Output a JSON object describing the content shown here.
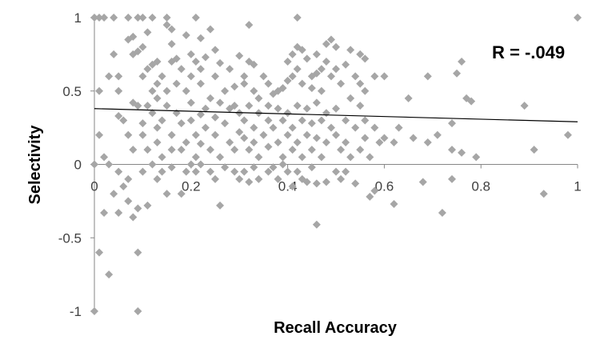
{
  "chart_data": {
    "type": "scatter",
    "title": "",
    "xlabel": "Recall Accuracy",
    "ylabel": "Selectivity",
    "xlim": [
      0,
      1
    ],
    "ylim": [
      -1,
      1
    ],
    "x_ticks": [
      0,
      0.2,
      0.4,
      0.6,
      0.8,
      1
    ],
    "x_tick_labels": [
      "0",
      "0.2",
      "0.4",
      "0.6",
      "0.8",
      "1"
    ],
    "y_ticks": [
      -1,
      -0.5,
      0,
      0.5,
      1
    ],
    "y_tick_labels": [
      "-1",
      "-0.5",
      "0",
      "0.5",
      "1"
    ],
    "grid": false,
    "legend": "none",
    "annotation": "R = -.049",
    "marker": "diamond",
    "marker_color": "#a6a6a6",
    "trendline": {
      "color": "#000000",
      "points": [
        [
          0,
          0.38
        ],
        [
          1,
          0.29
        ]
      ]
    },
    "series": [
      {
        "points": [
          [
            0.0,
            1.0
          ],
          [
            0.01,
            1.0
          ],
          [
            0.02,
            1.0
          ],
          [
            0.04,
            1.0
          ],
          [
            0.07,
            1.0
          ],
          [
            0.09,
            1.0
          ],
          [
            0.1,
            1.0
          ],
          [
            0.12,
            1.0
          ],
          [
            0.15,
            1.0
          ],
          [
            0.21,
            1.0
          ],
          [
            0.42,
            1.0
          ],
          [
            1.0,
            1.0
          ],
          [
            0.01,
            0.5
          ],
          [
            0.03,
            0.6
          ],
          [
            0.05,
            0.6
          ],
          [
            0.04,
            0.75
          ],
          [
            0.05,
            0.5
          ],
          [
            0.07,
            0.85
          ],
          [
            0.08,
            0.87
          ],
          [
            0.08,
            0.75
          ],
          [
            0.09,
            0.77
          ],
          [
            0.11,
            0.9
          ],
          [
            0.1,
            0.8
          ],
          [
            0.1,
            0.6
          ],
          [
            0.11,
            0.65
          ],
          [
            0.12,
            0.68
          ],
          [
            0.13,
            0.7
          ],
          [
            0.13,
            0.55
          ],
          [
            0.12,
            0.5
          ],
          [
            0.11,
            0.4
          ],
          [
            0.13,
            0.45
          ],
          [
            0.14,
            0.6
          ],
          [
            0.15,
            0.5
          ],
          [
            0.16,
            0.7
          ],
          [
            0.15,
            0.95
          ],
          [
            0.16,
            0.92
          ],
          [
            0.16,
            0.82
          ],
          [
            0.17,
            0.72
          ],
          [
            0.17,
            0.55
          ],
          [
            0.18,
            0.65
          ],
          [
            0.19,
            0.5
          ],
          [
            0.19,
            0.88
          ],
          [
            0.2,
            0.75
          ],
          [
            0.2,
            0.6
          ],
          [
            0.21,
            0.7
          ],
          [
            0.22,
            0.65
          ],
          [
            0.22,
            0.55
          ],
          [
            0.22,
            0.86
          ],
          [
            0.23,
            0.73
          ],
          [
            0.24,
            0.92
          ],
          [
            0.25,
            0.78
          ],
          [
            0.25,
            0.6
          ],
          [
            0.26,
            0.69
          ],
          [
            0.27,
            0.5
          ],
          [
            0.28,
            0.65
          ],
          [
            0.29,
            0.53
          ],
          [
            0.29,
            0.4
          ],
          [
            0.3,
            0.74
          ],
          [
            0.31,
            0.6
          ],
          [
            0.31,
            0.55
          ],
          [
            0.32,
            0.7
          ],
          [
            0.32,
            0.95
          ],
          [
            0.33,
            0.68
          ],
          [
            0.33,
            0.5
          ],
          [
            0.34,
            0.45
          ],
          [
            0.35,
            0.6
          ],
          [
            0.36,
            0.55
          ],
          [
            0.36,
            0.4
          ],
          [
            0.37,
            0.48
          ],
          [
            0.38,
            0.5
          ],
          [
            0.39,
            0.52
          ],
          [
            0.4,
            0.57
          ],
          [
            0.4,
            0.7
          ],
          [
            0.41,
            0.75
          ],
          [
            0.41,
            0.6
          ],
          [
            0.42,
            0.8
          ],
          [
            0.42,
            0.65
          ],
          [
            0.43,
            0.78
          ],
          [
            0.43,
            0.55
          ],
          [
            0.44,
            0.72
          ],
          [
            0.45,
            0.6
          ],
          [
            0.45,
            0.52
          ],
          [
            0.46,
            0.62
          ],
          [
            0.46,
            0.75
          ],
          [
            0.47,
            0.65
          ],
          [
            0.47,
            0.5
          ],
          [
            0.48,
            0.82
          ],
          [
            0.48,
            0.7
          ],
          [
            0.49,
            0.85
          ],
          [
            0.49,
            0.6
          ],
          [
            0.5,
            0.8
          ],
          [
            0.5,
            0.65
          ],
          [
            0.51,
            0.55
          ],
          [
            0.52,
            0.68
          ],
          [
            0.53,
            0.45
          ],
          [
            0.53,
            0.78
          ],
          [
            0.54,
            0.6
          ],
          [
            0.55,
            0.55
          ],
          [
            0.55,
            0.75
          ],
          [
            0.56,
            0.72
          ],
          [
            0.56,
            0.5
          ],
          [
            0.58,
            0.6
          ],
          [
            0.6,
            0.6
          ],
          [
            0.02,
            0.05
          ],
          [
            0.03,
            0.0
          ],
          [
            0.05,
            0.33
          ],
          [
            0.06,
            0.3
          ],
          [
            0.07,
            0.2
          ],
          [
            0.08,
            0.1
          ],
          [
            0.08,
            0.42
          ],
          [
            0.09,
            0.4
          ],
          [
            0.1,
            0.28
          ],
          [
            0.1,
            0.2
          ],
          [
            0.11,
            0.1
          ],
          [
            0.12,
            0.35
          ],
          [
            0.13,
            0.25
          ],
          [
            0.13,
            0.15
          ],
          [
            0.14,
            0.05
          ],
          [
            0.14,
            0.3
          ],
          [
            0.15,
            0.4
          ],
          [
            0.16,
            0.2
          ],
          [
            0.16,
            0.1
          ],
          [
            0.17,
            0.35
          ],
          [
            0.18,
            0.28
          ],
          [
            0.18,
            0.1
          ],
          [
            0.19,
            0.15
          ],
          [
            0.2,
            0.3
          ],
          [
            0.2,
            0.42
          ],
          [
            0.21,
            0.2
          ],
          [
            0.21,
            0.05
          ],
          [
            0.22,
            0.34
          ],
          [
            0.22,
            0.14
          ],
          [
            0.23,
            0.38
          ],
          [
            0.23,
            0.25
          ],
          [
            0.24,
            0.1
          ],
          [
            0.24,
            0.45
          ],
          [
            0.25,
            0.32
          ],
          [
            0.25,
            0.2
          ],
          [
            0.26,
            0.42
          ],
          [
            0.26,
            0.05
          ],
          [
            0.27,
            0.28
          ],
          [
            0.28,
            0.15
          ],
          [
            0.28,
            0.38
          ],
          [
            0.29,
            0.1
          ],
          [
            0.3,
            0.35
          ],
          [
            0.3,
            0.22
          ],
          [
            0.31,
            0.18
          ],
          [
            0.31,
            0.3
          ],
          [
            0.32,
            0.1
          ],
          [
            0.32,
            0.4
          ],
          [
            0.33,
            0.25
          ],
          [
            0.33,
            0.15
          ],
          [
            0.34,
            0.35
          ],
          [
            0.34,
            0.05
          ],
          [
            0.35,
            0.2
          ],
          [
            0.36,
            0.3
          ],
          [
            0.36,
            0.12
          ],
          [
            0.37,
            0.25
          ],
          [
            0.38,
            0.38
          ],
          [
            0.38,
            0.15
          ],
          [
            0.39,
            0.3
          ],
          [
            0.39,
            0.05
          ],
          [
            0.4,
            0.2
          ],
          [
            0.4,
            0.35
          ],
          [
            0.41,
            0.1
          ],
          [
            0.41,
            0.25
          ],
          [
            0.42,
            0.15
          ],
          [
            0.42,
            0.4
          ],
          [
            0.43,
            0.3
          ],
          [
            0.43,
            0.05
          ],
          [
            0.44,
            0.2
          ],
          [
            0.44,
            0.38
          ],
          [
            0.45,
            0.1
          ],
          [
            0.45,
            0.28
          ],
          [
            0.46,
            0.18
          ],
          [
            0.46,
            0.42
          ],
          [
            0.47,
            0.05
          ],
          [
            0.47,
            0.3
          ],
          [
            0.48,
            0.15
          ],
          [
            0.48,
            0.35
          ],
          [
            0.49,
            0.25
          ],
          [
            0.5,
            0.2
          ],
          [
            0.5,
            0.38
          ],
          [
            0.51,
            0.1
          ],
          [
            0.52,
            0.3
          ],
          [
            0.52,
            0.15
          ],
          [
            0.53,
            0.05
          ],
          [
            0.54,
            0.25
          ],
          [
            0.55,
            0.4
          ],
          [
            0.55,
            0.1
          ],
          [
            0.56,
            0.3
          ],
          [
            0.56,
            0.18
          ],
          [
            0.57,
            0.05
          ],
          [
            0.58,
            0.25
          ],
          [
            0.59,
            0.15
          ],
          [
            0.6,
            0.18
          ],
          [
            0.62,
            0.15
          ],
          [
            0.63,
            0.25
          ],
          [
            0.65,
            0.45
          ],
          [
            0.66,
            0.18
          ],
          [
            0.69,
            0.6
          ],
          [
            0.69,
            0.15
          ],
          [
            0.71,
            0.2
          ],
          [
            0.74,
            0.28
          ],
          [
            0.74,
            0.1
          ],
          [
            0.75,
            0.62
          ],
          [
            0.76,
            0.7
          ],
          [
            0.76,
            0.08
          ],
          [
            0.77,
            0.45
          ],
          [
            0.78,
            0.43
          ],
          [
            0.79,
            0.05
          ],
          [
            0.89,
            0.4
          ],
          [
            0.91,
            0.1
          ],
          [
            0.98,
            0.2
          ],
          [
            0.0,
            0.0
          ],
          [
            0.01,
            0.2
          ],
          [
            0.01,
            -0.6
          ],
          [
            0.02,
            -0.33
          ],
          [
            0.03,
            -0.75
          ],
          [
            0.04,
            -0.2
          ],
          [
            0.05,
            -0.33
          ],
          [
            0.05,
            -0.05
          ],
          [
            0.06,
            -0.15
          ],
          [
            0.07,
            -0.1
          ],
          [
            0.07,
            -0.25
          ],
          [
            0.08,
            -0.36
          ],
          [
            0.09,
            -0.3
          ],
          [
            0.09,
            -0.6
          ],
          [
            0.1,
            -0.05
          ],
          [
            0.11,
            -0.28
          ],
          [
            0.12,
            0.0
          ],
          [
            0.13,
            -0.1
          ],
          [
            0.14,
            -0.05
          ],
          [
            0.15,
            -0.2
          ],
          [
            0.16,
            -0.02
          ],
          [
            0.18,
            -0.2
          ],
          [
            0.19,
            -0.05
          ],
          [
            0.2,
            0.0
          ],
          [
            0.21,
            -0.05
          ],
          [
            0.22,
            0.0
          ],
          [
            0.24,
            -0.05
          ],
          [
            0.25,
            -0.1
          ],
          [
            0.26,
            -0.28
          ],
          [
            0.27,
            -0.02
          ],
          [
            0.29,
            -0.05
          ],
          [
            0.3,
            -0.1
          ],
          [
            0.31,
            -0.05
          ],
          [
            0.32,
            -0.12
          ],
          [
            0.33,
            -0.02
          ],
          [
            0.34,
            -0.1
          ],
          [
            0.36,
            -0.05
          ],
          [
            0.37,
            -0.02
          ],
          [
            0.38,
            -0.1
          ],
          [
            0.39,
            0.0
          ],
          [
            0.4,
            -0.05
          ],
          [
            0.41,
            -0.15
          ],
          [
            0.42,
            -0.05
          ],
          [
            0.43,
            -0.1
          ],
          [
            0.44,
            -0.12
          ],
          [
            0.45,
            -0.02
          ],
          [
            0.46,
            -0.13
          ],
          [
            0.46,
            -0.41
          ],
          [
            0.48,
            -0.12
          ],
          [
            0.5,
            -0.05
          ],
          [
            0.51,
            -0.1
          ],
          [
            0.52,
            -0.05
          ],
          [
            0.54,
            -0.13
          ],
          [
            0.57,
            -0.22
          ],
          [
            0.58,
            -0.18
          ],
          [
            0.62,
            -0.27
          ],
          [
            0.68,
            -0.12
          ],
          [
            0.72,
            -0.33
          ],
          [
            0.74,
            -0.1
          ],
          [
            0.93,
            -0.2
          ],
          [
            0.0,
            -1.0
          ],
          [
            0.09,
            -1.0
          ]
        ]
      }
    ]
  }
}
